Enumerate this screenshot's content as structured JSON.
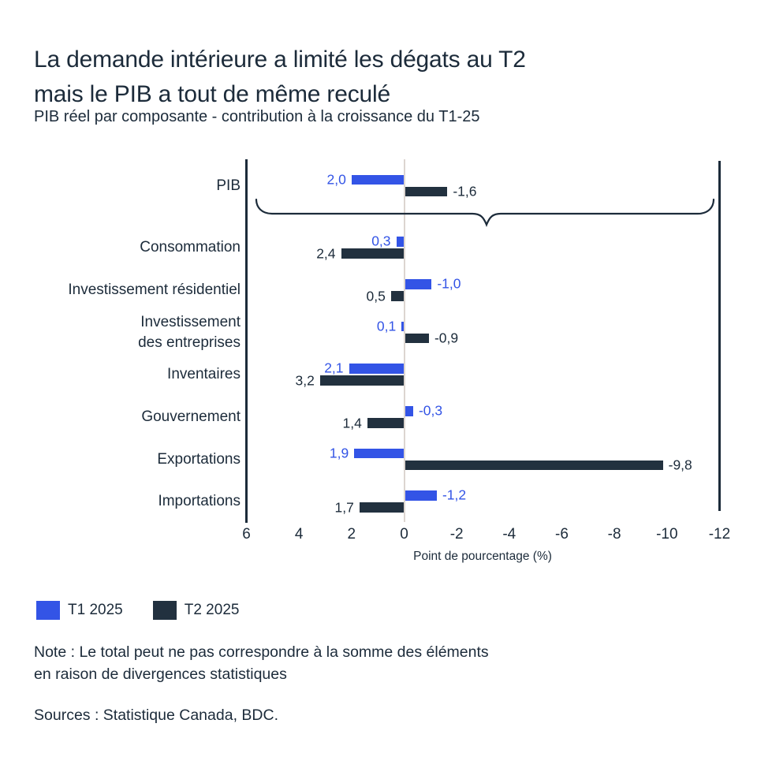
{
  "title": {
    "line1": "La demande intérieure a limité les dégats au T2",
    "line2": "mais le PIB a tout de même reculé"
  },
  "subtitle": "PIB réel par composante - contribution à la croissance du T1-25",
  "colors": {
    "t1": "#3354E6",
    "t2": "#22313F",
    "text": "#1C2B3A",
    "zero_line": "#DCD5D0",
    "background": "#FFFFFF"
  },
  "legend": [
    {
      "label": "T1 2025",
      "series": "t1"
    },
    {
      "label": "T2 2025",
      "series": "t2"
    }
  ],
  "x_axis": {
    "label": "Point de pourcentage (%)",
    "ticks": [
      {
        "label": "6",
        "value": 6
      },
      {
        "label": "4",
        "value": 4
      },
      {
        "label": "2",
        "value": 2
      },
      {
        "label": "0",
        "value": 0
      },
      {
        "label": "-2",
        "value": -2
      },
      {
        "label": "-4",
        "value": -4
      },
      {
        "label": "-6",
        "value": -6
      },
      {
        "label": "-8",
        "value": -8
      },
      {
        "label": "-10",
        "value": -10
      },
      {
        "label": "-12",
        "value": -12
      }
    ]
  },
  "note": {
    "line1": "Note : Le total peut ne pas correspondre à la somme des éléments",
    "line2": "en raison de divergences statistiques"
  },
  "sources": "Sources : Statistique Canada, BDC.",
  "chart_data": {
    "type": "bar",
    "orientation": "horizontal",
    "axis_reversed": true,
    "xlim": [
      6,
      -12
    ],
    "xlabel": "Point de pourcentage (%)",
    "grid": false,
    "legend_position": "bottom",
    "categories": [
      "PIB",
      "Consommation",
      "Investissement résidentiel",
      "Investissement\ndes entreprises",
      "Inventaires",
      "Gouvernement",
      "Exportations",
      "Importations"
    ],
    "series": [
      {
        "name": "T1 2025",
        "values": [
          2.0,
          0.3,
          -1.0,
          0.1,
          2.1,
          -0.3,
          1.9,
          -1.2
        ],
        "labels": [
          "2,0",
          "0,3",
          "-1,0",
          "0,1",
          "2,1",
          "-0,3",
          "1,9",
          "-1,2"
        ]
      },
      {
        "name": "T2 2025",
        "values": [
          -1.6,
          2.4,
          0.5,
          -0.9,
          3.2,
          1.4,
          -9.8,
          1.7
        ],
        "labels": [
          "-1,6",
          "2,4",
          "0,5",
          "-0,9",
          "3,2",
          "1,4",
          "-9,8",
          "1,7"
        ]
      }
    ],
    "annotations": [
      "brace grouping all components below PIB row"
    ]
  }
}
